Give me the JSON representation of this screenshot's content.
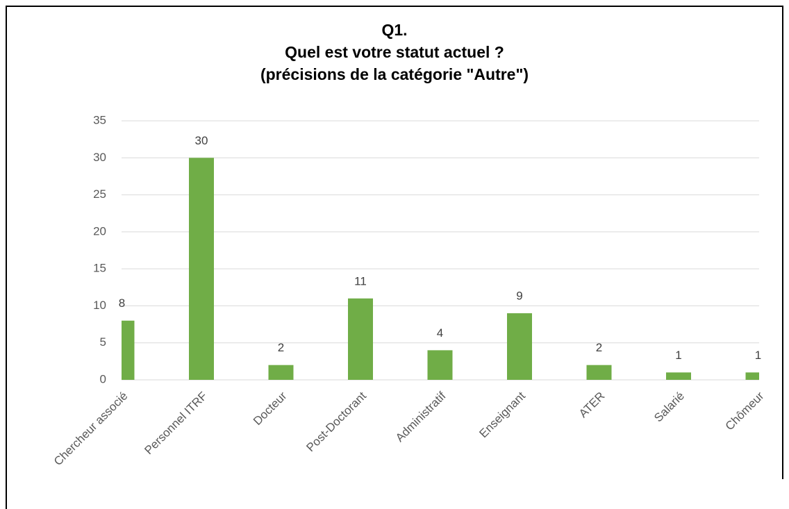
{
  "chart_data": {
    "type": "bar",
    "title": [
      "Q1.",
      "Quel est votre statut actuel ?",
      "(précisions de la catégorie \"Autre\")"
    ],
    "categories": [
      "Chercheur associé",
      "Personnel ITRF",
      "Docteur",
      "Post-Doctorant",
      "Administratif",
      "Enseignant",
      "ATER",
      "Salarié",
      "Chômeur"
    ],
    "values": [
      8,
      30,
      2,
      11,
      4,
      9,
      2,
      1,
      1
    ],
    "color": "#70ad47",
    "ylim": [
      0,
      35
    ],
    "yticks": [
      0,
      5,
      10,
      15,
      20,
      25,
      30,
      35
    ],
    "grid": true
  }
}
